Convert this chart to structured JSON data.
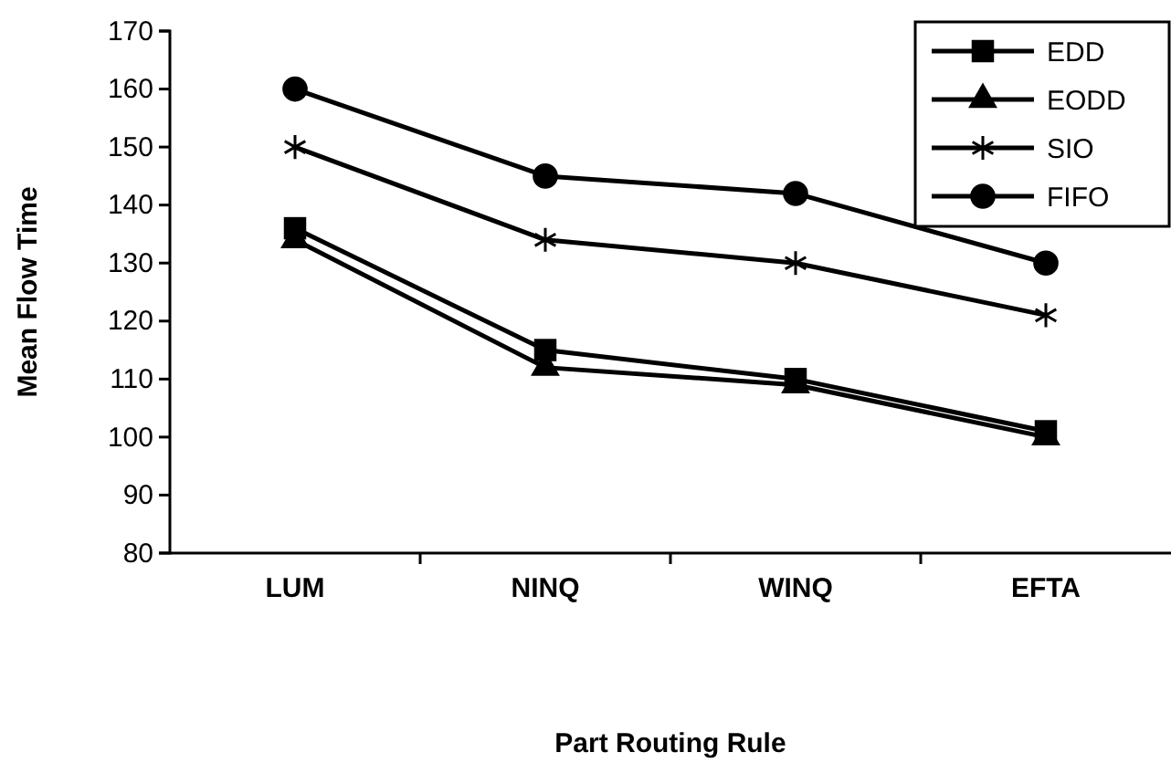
{
  "chart_data": {
    "type": "line",
    "xlabel": "Part Routing Rule",
    "ylabel": "Mean Flow Time",
    "categories": [
      "LUM",
      "NINQ",
      "WINQ",
      "EFTA"
    ],
    "series": [
      {
        "name": "EDD",
        "color": "#000000",
        "marker": "square",
        "values": [
          136,
          115,
          110,
          101
        ]
      },
      {
        "name": "EODD",
        "color": "#000000",
        "marker": "triangle",
        "values": [
          134,
          112,
          109,
          100
        ]
      },
      {
        "name": "SIO",
        "color": "#000000",
        "marker": "cross",
        "values": [
          150,
          134,
          130,
          121
        ]
      },
      {
        "name": "FIFO",
        "color": "#000000",
        "marker": "circle",
        "values": [
          160,
          145,
          142,
          130
        ]
      }
    ],
    "ylim": [
      80,
      170
    ],
    "yticks": [
      80,
      90,
      100,
      110,
      120,
      130,
      140,
      150,
      160,
      170
    ],
    "grid": false,
    "legend": "top right",
    "line_style": "solid"
  }
}
